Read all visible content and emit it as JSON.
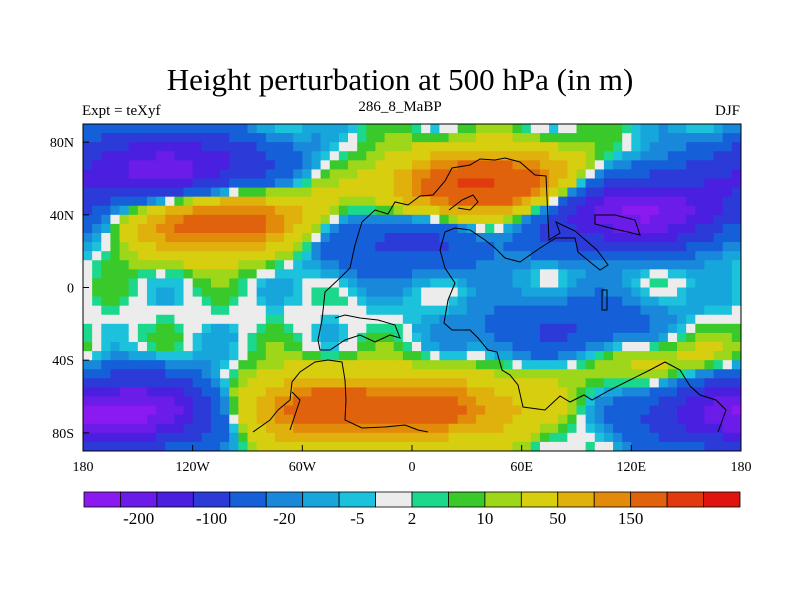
{
  "figure": {
    "title": "Height perturbation at 500 hPa (in m)",
    "left_label": "Expt = teXyf",
    "center_label": "286_8_MaBP",
    "right_label": "DJF"
  },
  "map": {
    "lon_ticks": [
      "180",
      "120W",
      "60W",
      "0",
      "60E",
      "120E",
      "180"
    ],
    "lat_ticks": [
      "80N",
      "40N",
      "0",
      "40S",
      "80S"
    ],
    "lon_range": [
      -180,
      180
    ],
    "lat_range": [
      -90,
      90
    ]
  },
  "field_centers": [
    {
      "lon": -135,
      "lat": 65,
      "value": -180
    },
    {
      "lon": -105,
      "lat": 37,
      "value": 140
    },
    {
      "lon": 45,
      "lat": 55,
      "value": 180
    },
    {
      "lon": 120,
      "lat": 42,
      "value": -220
    },
    {
      "lon": -10,
      "lat": 27,
      "value": -70
    },
    {
      "lon": 90,
      "lat": -25,
      "value": -60
    },
    {
      "lon": -150,
      "lat": -68,
      "value": -180
    },
    {
      "lon": -60,
      "lat": -67,
      "value": 120
    },
    {
      "lon": 15,
      "lat": -67,
      "value": 100
    },
    {
      "lon": 130,
      "lat": -40,
      "value": 45
    },
    {
      "lon": 170,
      "lat": -70,
      "value": -80
    }
  ],
  "colorbar": {
    "colors": [
      "#8b1af0",
      "#6c1ce8",
      "#4a1fe0",
      "#2c3ad8",
      "#1560d8",
      "#1a88da",
      "#17a6dc",
      "#1cc2dc",
      "#ececec",
      "#1bd88c",
      "#3ac92a",
      "#9ed61a",
      "#d7ce10",
      "#e0b00c",
      "#e28a0a",
      "#e0620c",
      "#e03a0e",
      "#e0140e"
    ],
    "labels": [
      "-200",
      "-100",
      "-20",
      "-5",
      "2",
      "10",
      "50",
      "150"
    ]
  }
}
